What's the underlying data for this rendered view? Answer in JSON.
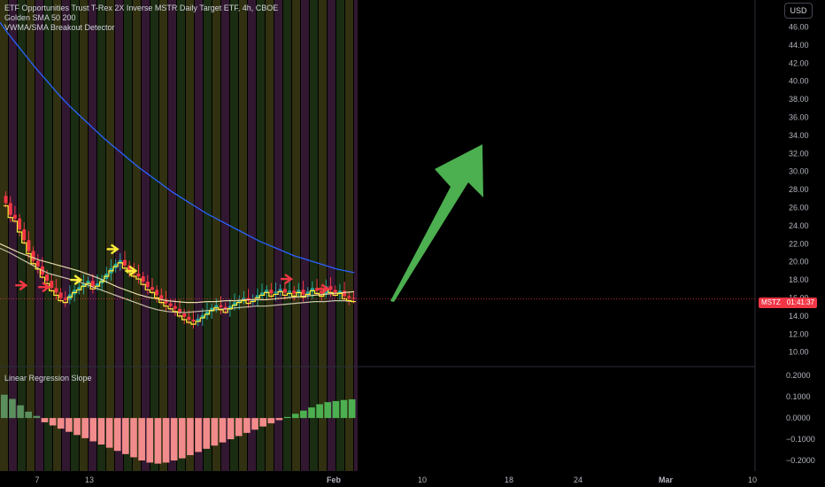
{
  "legend": {
    "title": "ETF Opportunities Trust T-Rex 2X Inverse MSTR Daily Target ETF, 4h, CBOE",
    "ind1": "Golden SMA 50 200",
    "ind2": "VWMA/SMA Breakout Detector"
  },
  "currency": "USD",
  "indicator_title": "Linear Regression Slope",
  "last_price": {
    "symbol": "MSTZ",
    "countdown": "01:41:37",
    "value": 15.9
  },
  "colors": {
    "up": "#26a69a",
    "down": "#f23645",
    "ma_long": "#2962ff",
    "ma_short": "#e6d9a8",
    "signal": "#ffeb3b",
    "arrow": "#4caf50"
  },
  "chart_data": [
    {
      "type": "candlestick",
      "price_axis": {
        "ticks": [
          "46.00",
          "44.00",
          "42.00",
          "40.00",
          "38.00",
          "36.00",
          "34.00",
          "32.00",
          "30.00",
          "28.00",
          "26.00",
          "24.00",
          "22.00",
          "20.00",
          "18.00",
          "16.00",
          "14.00",
          "12.00",
          "10.00"
        ],
        "range": [
          8.6,
          48.2
        ]
      },
      "time_axis": {
        "labels": [
          "7",
          "13",
          "Feb",
          "10",
          "18",
          "24",
          "Mar",
          "10"
        ],
        "bold_labels": [
          "Feb",
          "Mar"
        ]
      },
      "closes": [
        26.5,
        25.2,
        24.8,
        23.6,
        22.4,
        21.2,
        20.1,
        19.5,
        18.6,
        17.9,
        17.1,
        16.6,
        16.0,
        15.8,
        16.4,
        16.9,
        17.2,
        17.6,
        17.9,
        17.3,
        17.6,
        18.1,
        18.7,
        19.3,
        19.8,
        20.2,
        19.6,
        19.1,
        18.7,
        18.4,
        17.8,
        17.2,
        16.9,
        16.3,
        15.8,
        15.4,
        15.1,
        14.8,
        14.3,
        13.9,
        13.6,
        13.4,
        13.7,
        14.1,
        14.5,
        14.9,
        15.2,
        15.0,
        14.7,
        15.1,
        15.5,
        15.8,
        16.0,
        15.7,
        15.9,
        16.3,
        16.6,
        16.9,
        16.5,
        16.7,
        17.0,
        16.6,
        16.8,
        16.5,
        16.9,
        16.4,
        16.7,
        17.1,
        16.8,
        16.5,
        17.3,
        16.9,
        16.6,
        16.8,
        16.2,
        16.0,
        15.9
      ],
      "sma_long": [
        46.5,
        45.2,
        44.0,
        42.8,
        41.6,
        40.5,
        39.4,
        38.3,
        37.3,
        36.4,
        35.5,
        34.6,
        33.7,
        32.9,
        32.1,
        31.3,
        30.5,
        29.8,
        29.1,
        28.4,
        27.7,
        27.1,
        26.5,
        25.9,
        25.3,
        24.8,
        24.3,
        23.8,
        23.3,
        22.8,
        22.3,
        21.9,
        21.5,
        21.1,
        20.7,
        20.4,
        20.1,
        19.8,
        19.5,
        19.2,
        19.0,
        18.8
      ],
      "sma_short": [
        22.0,
        21.5,
        21.0,
        20.6,
        20.2,
        19.9,
        19.6,
        19.3,
        19.0,
        18.6,
        18.2,
        17.7,
        17.2,
        16.8,
        16.4,
        16.1,
        15.9,
        15.7,
        15.6,
        15.5,
        15.5,
        15.6,
        15.6,
        15.7,
        15.7,
        15.8,
        15.8,
        15.8,
        15.9,
        16.0,
        16.1,
        16.2,
        16.3,
        16.4,
        16.5,
        16.6,
        16.7
      ],
      "vwma": [
        21.5,
        21.0,
        20.4,
        19.8,
        19.2,
        18.7,
        18.4,
        18.1,
        17.8,
        17.4,
        17.0,
        16.6,
        16.2,
        15.8,
        15.4,
        15.0,
        14.7,
        14.5,
        14.4,
        14.4,
        14.5,
        14.6,
        14.7,
        14.8,
        14.9,
        15.0,
        15.1,
        15.1,
        15.2,
        15.3,
        15.4,
        15.5,
        15.6,
        15.6,
        15.7,
        15.7,
        15.6
      ]
    },
    {
      "type": "histogram",
      "title": "Linear Regression Slope",
      "y_axis": {
        "ticks": [
          "0.2000",
          "0.1000",
          "0.0000",
          "−0.1000",
          "−0.2000"
        ],
        "range": [
          -0.25,
          0.23
        ]
      },
      "values": [
        0.11,
        0.09,
        0.06,
        0.03,
        0.01,
        -0.02,
        -0.035,
        -0.05,
        -0.065,
        -0.08,
        -0.095,
        -0.11,
        -0.125,
        -0.14,
        -0.155,
        -0.17,
        -0.185,
        -0.2,
        -0.21,
        -0.215,
        -0.21,
        -0.2,
        -0.19,
        -0.175,
        -0.16,
        -0.145,
        -0.13,
        -0.115,
        -0.1,
        -0.085,
        -0.07,
        -0.055,
        -0.04,
        -0.025,
        -0.01,
        0.005,
        0.02,
        0.035,
        0.05,
        0.065,
        0.075,
        0.08,
        0.085,
        0.088
      ]
    }
  ]
}
